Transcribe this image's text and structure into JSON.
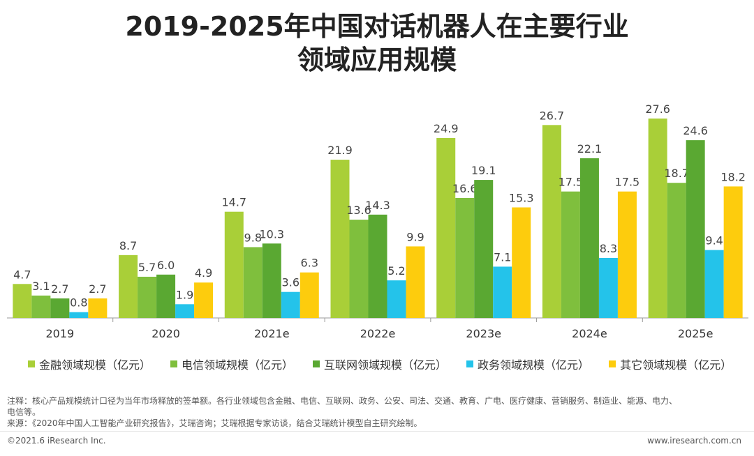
{
  "header": {
    "title_line1": "2019-2025年中国对话机器人在主要行业",
    "title_line2": "领域应用规模"
  },
  "chart_data": {
    "type": "bar",
    "title": "2019-2025年中国对话机器人在主要行业领域应用规模",
    "categories": [
      "2019",
      "2020",
      "2021e",
      "2022e",
      "2023e",
      "2024e",
      "2025e"
    ],
    "series": [
      {
        "name": "金融领域规模（亿元）",
        "color": "#a9cf38",
        "values": [
          4.7,
          8.7,
          14.7,
          21.9,
          24.9,
          26.7,
          27.6
        ]
      },
      {
        "name": "电信领域规模（亿元）",
        "color": "#7fbf3d",
        "values": [
          3.1,
          5.7,
          9.8,
          13.6,
          16.6,
          17.5,
          18.7
        ]
      },
      {
        "name": "互联网领域规模（亿元）",
        "color": "#5aa832",
        "values": [
          2.7,
          6.0,
          10.3,
          14.3,
          19.1,
          22.1,
          24.6
        ]
      },
      {
        "name": "政务领域规模（亿元）",
        "color": "#24c3ea",
        "values": [
          0.8,
          1.9,
          3.6,
          5.2,
          7.1,
          8.3,
          9.4
        ]
      },
      {
        "name": "其它领域规模（亿元）",
        "color": "#fdcc0d",
        "values": [
          2.7,
          4.9,
          6.3,
          9.9,
          15.3,
          17.5,
          18.2
        ]
      }
    ],
    "legend_position": "bottom",
    "grid": false
  },
  "notes": {
    "line1": "注释：核心产品规模统计口径为当年市场释放的签单额。各行业领域包含金融、电信、互联网、政务、公安、司法、交通、教育、广电、医疗健康、营销服务、制造业、能源、电力、",
    "line2": "电信等。",
    "line3": "来源：《2020年中国人工智能产业研究报告》，艾瑞咨询；艾瑞根据专家访谈，结合艾瑞统计模型自主研究绘制。"
  },
  "footer": {
    "copyright": "©2021.6 iResearch Inc.",
    "website": "www.iresearch.com.cn"
  }
}
